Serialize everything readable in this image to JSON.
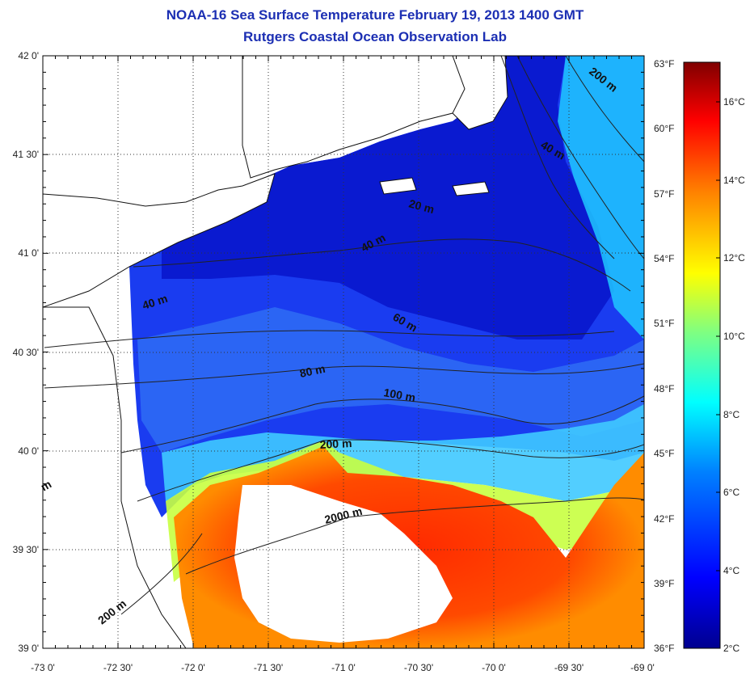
{
  "header": {
    "title_line1": "NOAA-16 Sea Surface Temperature February 19, 2013 1400 GMT",
    "title_line2": "Rutgers Coastal Ocean Observation Lab"
  },
  "map": {
    "lat_ticks": [
      "42 0'",
      "41 30'",
      "41 0'",
      "40 30'",
      "40 0'",
      "39 30'",
      "39 0'"
    ],
    "lon_ticks": [
      "-73 0'",
      "-72 30'",
      "-72 0'",
      "-71 30'",
      "-71 0'",
      "-70 30'",
      "-70 0'",
      "-69 30'",
      "-69 0'"
    ],
    "depth_labels": [
      "200 m",
      "40 m",
      "20 m",
      "40 m",
      "40 m",
      "60 m",
      "80 m",
      "100 m",
      "200 m",
      "2000 m",
      "200 m",
      "m"
    ]
  },
  "colorbar": {
    "fahrenheit_labels": [
      "63°F",
      "60°F",
      "57°F",
      "54°F",
      "51°F",
      "48°F",
      "45°F",
      "42°F",
      "39°F",
      "36°F"
    ],
    "celsius_labels": [
      "16°C",
      "14°C",
      "12°C",
      "10°C",
      "8°C",
      "6°C",
      "4°C",
      "2°C"
    ],
    "colors": [
      "#00008f",
      "#0000ff",
      "#0080ff",
      "#00ffff",
      "#80ff80",
      "#ffff00",
      "#ff8000",
      "#ff0000",
      "#800000"
    ]
  }
}
